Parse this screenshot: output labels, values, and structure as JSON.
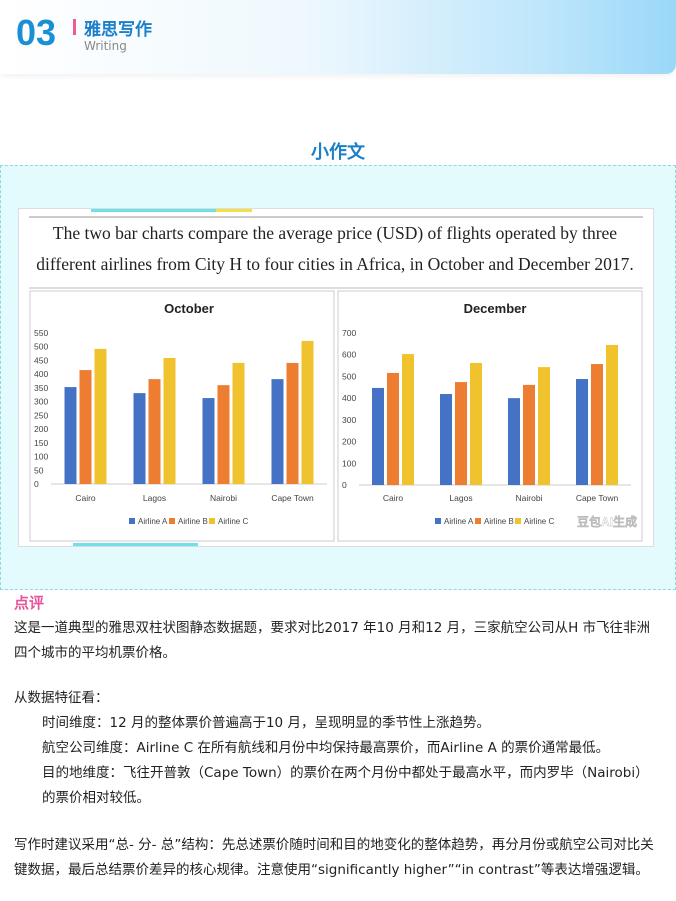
{
  "header": {
    "number": "03",
    "title": "雅思写作",
    "subtitle": "Writing"
  },
  "section_title": "小作文",
  "figure_caption": "The two bar charts compare the average price (USD) of flights operated by three different airlines from City H to four cities in Africa, in October and December 2017.",
  "watermark": "豆包AI生成",
  "chart_data": [
    {
      "type": "bar",
      "title": "October",
      "categories": [
        "Cairo",
        "Lagos",
        "Nairobi",
        "Cape Town"
      ],
      "series": [
        {
          "name": "Airline A",
          "color": "#4472c4",
          "values": [
            353,
            331,
            313,
            382
          ]
        },
        {
          "name": "Airline B",
          "color": "#ed7d31",
          "values": [
            415,
            382,
            360,
            441
          ]
        },
        {
          "name": "Airline C",
          "color": "#f0c22e",
          "values": [
            492,
            459,
            441,
            521
          ]
        }
      ],
      "ylim": [
        0,
        550
      ],
      "yticks": [
        0,
        50,
        100,
        150,
        200,
        250,
        300,
        350,
        400,
        450,
        500,
        550
      ],
      "grid": false
    },
    {
      "type": "bar",
      "title": "December",
      "categories": [
        "Cairo",
        "Lagos",
        "Nairobi",
        "Cape Town"
      ],
      "series": [
        {
          "name": "Airline A",
          "color": "#4472c4",
          "values": [
            447,
            419,
            400,
            488
          ]
        },
        {
          "name": "Airline B",
          "color": "#ed7d31",
          "values": [
            516,
            474,
            461,
            557
          ]
        },
        {
          "name": "Airline C",
          "color": "#f0c22e",
          "values": [
            603,
            562,
            543,
            645
          ]
        }
      ],
      "ylim": [
        0,
        700
      ],
      "yticks": [
        0,
        100,
        200,
        300,
        400,
        500,
        600,
        700
      ],
      "grid": false
    }
  ],
  "review": {
    "heading": "点评",
    "intro": "这是一道典型的雅思双柱状图静态数据题，要求对比2017 年10 月和12 月，三家航空公司从H 市飞往非洲四个城市的平均机票价格。",
    "features_heading": "从数据特征看：",
    "features": [
      "时间维度：12 月的整体票价普遍高于10 月，呈现明显的季节性上涨趋势。",
      "航空公司维度：Airline C 在所有航线和月份中均保持最高票价，而Airline A 的票价通常最低。",
      "目的地维度：飞往开普敦（Cape Town）的票价在两个月份中都处于最高水平，而内罗毕（Nairobi）的票价相对较低。"
    ],
    "advice": "写作时建议采用“总- 分- 总”结构：先总述票价随时间和目的地变化的整体趋势，再分月份或航空公司对比关键数据，最后总结票价差异的核心规律。注意使用“significantly higher”“in contrast”等表达增强逻辑。"
  }
}
